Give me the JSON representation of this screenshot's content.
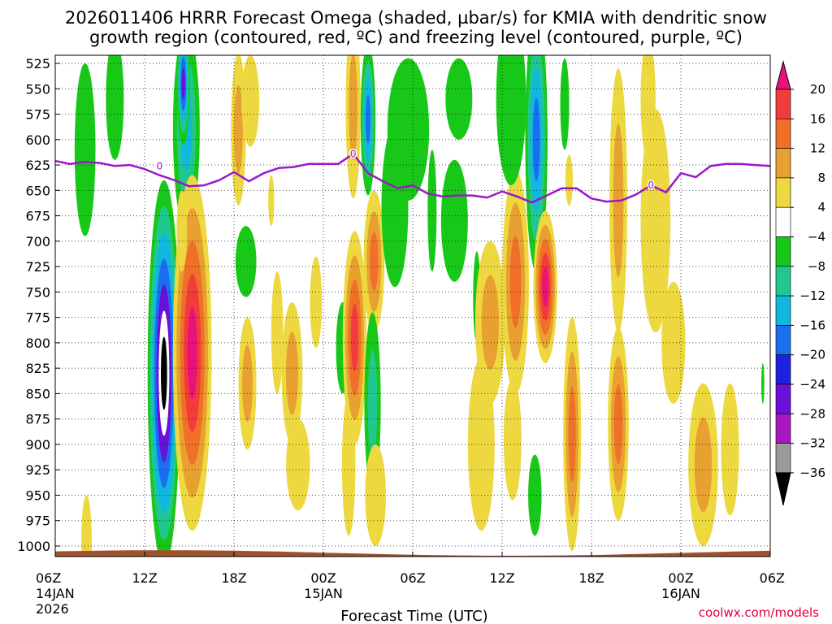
{
  "title_line1": "2026011406 HRRR Forecast Omega (shaded, µbar/s) for KMIA with dendritic snow",
  "title_line2": "growth region (contoured, red, ºC) and freezing level (contoured, purple, ºC)",
  "credit": "coolwx.com/models",
  "chart_data": {
    "type": "heatmap",
    "title": "2026011406 HRRR Forecast Omega (shaded, µbar/s) for KMIA with dendritic snow growth region (contoured, red, ºC) and freezing level (contoured, purple, ºC)",
    "xlabel": "Forecast Time (UTC)",
    "ylabel": "",
    "x_hours_range": [
      0,
      48
    ],
    "x_ticks": [
      {
        "hour": 0,
        "label": "06Z",
        "date": "14JAN",
        "year": "2026"
      },
      {
        "hour": 6,
        "label": "12Z"
      },
      {
        "hour": 12,
        "label": "18Z"
      },
      {
        "hour": 18,
        "label": "00Z",
        "date": "15JAN"
      },
      {
        "hour": 24,
        "label": "06Z"
      },
      {
        "hour": 30,
        "label": "12Z"
      },
      {
        "hour": 36,
        "label": "18Z"
      },
      {
        "hour": 42,
        "label": "00Z",
        "date": "16JAN"
      },
      {
        "hour": 48,
        "label": "06Z"
      }
    ],
    "y_ticks": [
      525,
      550,
      575,
      600,
      625,
      650,
      675,
      700,
      725,
      750,
      775,
      800,
      825,
      850,
      875,
      900,
      925,
      950,
      975,
      1000
    ],
    "colorbar": {
      "labels": [
        "20",
        "16",
        "12",
        "8",
        "4",
        "−4",
        "−8",
        "−12",
        "−16",
        "−20",
        "−24",
        "−28",
        "−32",
        "−36"
      ],
      "colors": [
        "#e8127a",
        "#f23c3c",
        "#f07028",
        "#e8a030",
        "#eed840",
        "#ffffff",
        "#18c818",
        "#20c890",
        "#10b8e0",
        "#1a6ff0",
        "#2020e0",
        "#6a10d8",
        "#a818c0",
        "#9a9a9a",
        "#000000"
      ]
    },
    "freezing_level": {
      "color": "#9a18c8",
      "label": "0",
      "points": [
        {
          "hour": 0,
          "hPa": 621
        },
        {
          "hour": 1,
          "hPa": 624
        },
        {
          "hour": 2,
          "hPa": 622
        },
        {
          "hour": 3,
          "hPa": 623
        },
        {
          "hour": 4,
          "hPa": 626
        },
        {
          "hour": 5,
          "hPa": 625
        },
        {
          "hour": 6,
          "hPa": 629
        },
        {
          "hour": 7,
          "hPa": 635
        },
        {
          "hour": 8,
          "hPa": 640
        },
        {
          "hour": 9,
          "hPa": 646
        },
        {
          "hour": 10,
          "hPa": 645
        },
        {
          "hour": 11,
          "hPa": 640
        },
        {
          "hour": 12,
          "hPa": 632
        },
        {
          "hour": 13,
          "hPa": 641
        },
        {
          "hour": 14,
          "hPa": 633
        },
        {
          "hour": 15,
          "hPa": 628
        },
        {
          "hour": 16,
          "hPa": 627
        },
        {
          "hour": 17,
          "hPa": 624
        },
        {
          "hour": 18,
          "hPa": 624
        },
        {
          "hour": 19,
          "hPa": 624
        },
        {
          "hour": 20,
          "hPa": 614
        },
        {
          "hour": 21,
          "hPa": 633
        },
        {
          "hour": 22,
          "hPa": 641
        },
        {
          "hour": 23,
          "hPa": 648
        },
        {
          "hour": 24,
          "hPa": 645
        },
        {
          "hour": 25,
          "hPa": 653
        },
        {
          "hour": 26,
          "hPa": 656
        },
        {
          "hour": 27,
          "hPa": 655
        },
        {
          "hour": 28,
          "hPa": 655
        },
        {
          "hour": 29,
          "hPa": 657
        },
        {
          "hour": 30,
          "hPa": 651
        },
        {
          "hour": 31,
          "hPa": 656
        },
        {
          "hour": 32,
          "hPa": 662
        },
        {
          "hour": 33,
          "hPa": 655
        },
        {
          "hour": 34,
          "hPa": 648
        },
        {
          "hour": 35,
          "hPa": 648
        },
        {
          "hour": 36,
          "hPa": 658
        },
        {
          "hour": 37,
          "hPa": 661
        },
        {
          "hour": 38,
          "hPa": 660
        },
        {
          "hour": 39,
          "hPa": 654
        },
        {
          "hour": 40,
          "hPa": 645
        },
        {
          "hour": 41,
          "hPa": 652
        },
        {
          "hour": 42,
          "hPa": 633
        },
        {
          "hour": 43,
          "hPa": 637
        },
        {
          "hour": 44,
          "hPa": 626
        },
        {
          "hour": 45,
          "hPa": 624
        },
        {
          "hour": 46,
          "hPa": 624
        },
        {
          "hour": 47,
          "hPa": 625
        },
        {
          "hour": 48,
          "hPa": 626
        }
      ]
    },
    "omega_features": [
      {
        "hour": 2.1,
        "hPa": 995,
        "hour_halfwidth": 0.35,
        "hPa_halfheight": 45,
        "levels": [
          "#eed840"
        ]
      },
      {
        "hour": 2.0,
        "hPa": 610,
        "hour_halfwidth": 0.7,
        "hPa_halfheight": 85,
        "levels": [
          "#18c818"
        ]
      },
      {
        "hour": 4.0,
        "hPa": 560,
        "hour_halfwidth": 0.6,
        "hPa_halfheight": 60,
        "levels": [
          "#18c818"
        ]
      },
      {
        "hour": 8.8,
        "hPa": 590,
        "hour_halfwidth": 0.9,
        "hPa_halfheight": 100,
        "levels": [
          "#18c818",
          "#20c890",
          "#10b8e0"
        ]
      },
      {
        "hour": 8.6,
        "hPa": 545,
        "hour_halfwidth": 0.45,
        "hPa_halfheight": 60,
        "levels": [
          "#18c818",
          "#20c890",
          "#10b8e0",
          "#1a6ff0",
          "#6a10d8"
        ]
      },
      {
        "hour": 7.3,
        "hPa": 830,
        "hour_halfwidth": 1.1,
        "hPa_halfheight": 190,
        "levels": [
          "#18c818",
          "#20c890",
          "#10b8e0",
          "#1a6ff0",
          "#6a10d8",
          "#ffffff",
          "#000000"
        ]
      },
      {
        "hour": 9.2,
        "hPa": 810,
        "hour_halfwidth": 1.3,
        "hPa_halfheight": 175,
        "levels": [
          "#eed840",
          "#e8a030",
          "#f07028",
          "#f23c3c",
          "#e8127a"
        ]
      },
      {
        "hour": 8.5,
        "hPa": 690,
        "hour_halfwidth": 0.35,
        "hPa_halfheight": 40,
        "levels": [
          "#eed840"
        ]
      },
      {
        "hour": 12.3,
        "hPa": 590,
        "hour_halfwidth": 0.5,
        "hPa_halfheight": 75,
        "levels": [
          "#eed840",
          "#e8a030"
        ]
      },
      {
        "hour": 12.9,
        "hPa": 840,
        "hour_halfwidth": 0.6,
        "hPa_halfheight": 65,
        "levels": [
          "#eed840",
          "#e8a030"
        ]
      },
      {
        "hour": 14.5,
        "hPa": 660,
        "hour_halfwidth": 0.2,
        "hPa_halfheight": 25,
        "levels": [
          "#eed840"
        ]
      },
      {
        "hour": 13.1,
        "hPa": 562,
        "hour_halfwidth": 0.6,
        "hPa_halfheight": 45,
        "levels": [
          "#eed840"
        ]
      },
      {
        "hour": 12.8,
        "hPa": 720,
        "hour_halfwidth": 0.7,
        "hPa_halfheight": 35,
        "levels": [
          "#18c818"
        ]
      },
      {
        "hour": 14.9,
        "hPa": 790,
        "hour_halfwidth": 0.4,
        "hPa_halfheight": 60,
        "levels": [
          "#eed840"
        ]
      },
      {
        "hour": 15.9,
        "hPa": 830,
        "hour_halfwidth": 0.7,
        "hPa_halfheight": 70,
        "levels": [
          "#eed840",
          "#e8a030"
        ]
      },
      {
        "hour": 16.3,
        "hPa": 920,
        "hour_halfwidth": 0.8,
        "hPa_halfheight": 45,
        "levels": [
          "#eed840"
        ]
      },
      {
        "hour": 17.5,
        "hPa": 760,
        "hour_halfwidth": 0.4,
        "hPa_halfheight": 45,
        "levels": [
          "#eed840"
        ]
      },
      {
        "hour": 19.3,
        "hPa": 805,
        "hour_halfwidth": 0.45,
        "hPa_halfheight": 45,
        "levels": [
          "#18c818"
        ]
      },
      {
        "hour": 19.7,
        "hPa": 920,
        "hour_halfwidth": 0.45,
        "hPa_halfheight": 70,
        "levels": [
          "#eed840"
        ]
      },
      {
        "hour": 20.0,
        "hPa": 568,
        "hour_halfwidth": 0.5,
        "hPa_halfheight": 90,
        "levels": [
          "#eed840",
          "#e8a030"
        ]
      },
      {
        "hour": 20.1,
        "hPa": 795,
        "hour_halfwidth": 0.8,
        "hPa_halfheight": 105,
        "levels": [
          "#eed840",
          "#e8a030",
          "#f07028",
          "#f23c3c"
        ]
      },
      {
        "hour": 21.4,
        "hPa": 720,
        "hour_halfwidth": 0.7,
        "hPa_halfheight": 70,
        "levels": [
          "#eed840",
          "#e8a030",
          "#f07028"
        ]
      },
      {
        "hour": 21.3,
        "hPa": 860,
        "hour_halfwidth": 0.55,
        "hPa_halfheight": 90,
        "levels": [
          "#18c818",
          "#20c890"
        ]
      },
      {
        "hour": 21.5,
        "hPa": 950,
        "hour_halfwidth": 0.7,
        "hPa_halfheight": 50,
        "levels": [
          "#eed840"
        ]
      },
      {
        "hour": 21.0,
        "hPa": 580,
        "hour_halfwidth": 0.5,
        "hPa_halfheight": 75,
        "levels": [
          "#18c818",
          "#20c890",
          "#10b8e0",
          "#1a6ff0"
        ]
      },
      {
        "hour": 23.7,
        "hPa": 590,
        "hour_halfwidth": 1.4,
        "hPa_halfheight": 70,
        "levels": [
          "#18c818"
        ]
      },
      {
        "hour": 22.8,
        "hPa": 665,
        "hour_halfwidth": 0.9,
        "hPa_halfheight": 80,
        "levels": [
          "#18c818"
        ]
      },
      {
        "hour": 27.1,
        "hPa": 560,
        "hour_halfwidth": 0.9,
        "hPa_halfheight": 40,
        "levels": [
          "#18c818"
        ]
      },
      {
        "hour": 26.8,
        "hPa": 680,
        "hour_halfwidth": 0.9,
        "hPa_halfheight": 60,
        "levels": [
          "#18c818"
        ]
      },
      {
        "hour": 25.3,
        "hPa": 670,
        "hour_halfwidth": 0.3,
        "hPa_halfheight": 60,
        "levels": [
          "#18c818"
        ]
      },
      {
        "hour": 28.3,
        "hPa": 755,
        "hour_halfwidth": 0.25,
        "hPa_halfheight": 45,
        "levels": [
          "#18c818"
        ]
      },
      {
        "hour": 29.2,
        "hPa": 780,
        "hour_halfwidth": 1.0,
        "hPa_halfheight": 80,
        "levels": [
          "#eed840",
          "#e8a030"
        ]
      },
      {
        "hour": 28.6,
        "hPa": 900,
        "hour_halfwidth": 0.9,
        "hPa_halfheight": 85,
        "levels": [
          "#eed840"
        ]
      },
      {
        "hour": 30.9,
        "hPa": 740,
        "hour_halfwidth": 0.9,
        "hPa_halfheight": 110,
        "levels": [
          "#eed840",
          "#e8a030",
          "#f07028"
        ]
      },
      {
        "hour": 30.7,
        "hPa": 895,
        "hour_halfwidth": 0.6,
        "hPa_halfheight": 60,
        "levels": [
          "#eed840"
        ]
      },
      {
        "hour": 30.6,
        "hPa": 560,
        "hour_halfwidth": 1.0,
        "hPa_halfheight": 85,
        "levels": [
          "#18c818"
        ]
      },
      {
        "hour": 32.3,
        "hPa": 600,
        "hour_halfwidth": 0.75,
        "hPa_halfheight": 130,
        "levels": [
          "#18c818",
          "#20c890",
          "#10b8e0",
          "#1a6ff0"
        ]
      },
      {
        "hour": 32.9,
        "hPa": 745,
        "hour_halfwidth": 0.8,
        "hPa_halfheight": 75,
        "levels": [
          "#eed840",
          "#e8a030",
          "#f07028",
          "#f23c3c",
          "#e8127a"
        ]
      },
      {
        "hour": 32.2,
        "hPa": 950,
        "hour_halfwidth": 0.45,
        "hPa_halfheight": 40,
        "levels": [
          "#18c818"
        ]
      },
      {
        "hour": 34.7,
        "hPa": 890,
        "hour_halfwidth": 0.6,
        "hPa_halfheight": 115,
        "levels": [
          "#eed840",
          "#e8a030",
          "#f07028"
        ]
      },
      {
        "hour": 34.2,
        "hPa": 565,
        "hour_halfwidth": 0.3,
        "hPa_halfheight": 45,
        "levels": [
          "#18c818"
        ]
      },
      {
        "hour": 34.5,
        "hPa": 640,
        "hour_halfwidth": 0.25,
        "hPa_halfheight": 25,
        "levels": [
          "#eed840"
        ]
      },
      {
        "hour": 37.8,
        "hPa": 660,
        "hour_halfwidth": 0.6,
        "hPa_halfheight": 130,
        "levels": [
          "#eed840",
          "#e8a030"
        ]
      },
      {
        "hour": 37.8,
        "hPa": 880,
        "hour_halfwidth": 0.7,
        "hPa_halfheight": 95,
        "levels": [
          "#eed840",
          "#e8a030",
          "#f07028"
        ]
      },
      {
        "hour": 40.3,
        "hPa": 680,
        "hour_halfwidth": 1.0,
        "hPa_halfheight": 110,
        "levels": [
          "#eed840"
        ]
      },
      {
        "hour": 41.5,
        "hPa": 800,
        "hour_halfwidth": 0.8,
        "hPa_halfheight": 60,
        "levels": [
          "#eed840"
        ]
      },
      {
        "hour": 39.8,
        "hPa": 560,
        "hour_halfwidth": 0.5,
        "hPa_halfheight": 60,
        "levels": [
          "#eed840"
        ]
      },
      {
        "hour": 43.5,
        "hPa": 920,
        "hour_halfwidth": 1.0,
        "hPa_halfheight": 80,
        "levels": [
          "#eed840",
          "#e8a030"
        ]
      },
      {
        "hour": 45.3,
        "hPa": 905,
        "hour_halfwidth": 0.6,
        "hPa_halfheight": 65,
        "levels": [
          "#eed840"
        ]
      },
      {
        "hour": 47.5,
        "hPa": 840,
        "hour_halfwidth": 0.1,
        "hPa_halfheight": 20,
        "levels": [
          "#18c818"
        ]
      }
    ],
    "terrain_color": "#a0522d"
  }
}
